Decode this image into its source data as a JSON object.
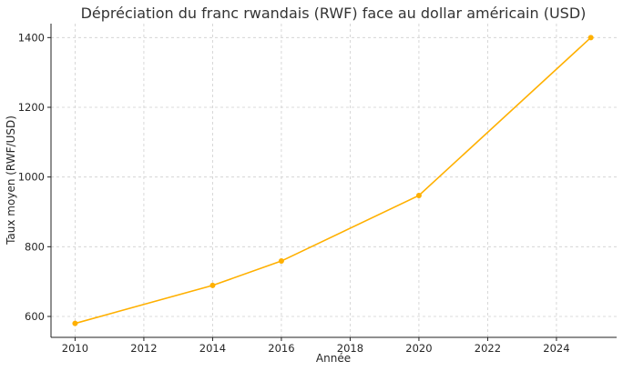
{
  "chart_data": {
    "type": "line",
    "title": "Dépréciation du franc rwandais (RWF) face au dollar américain (USD)",
    "xlabel": "Année",
    "ylabel": "Taux moyen (RWF/USD)",
    "xlim": [
      2009.3,
      2025.75
    ],
    "ylim": [
      540,
      1440
    ],
    "xticks": [
      2010,
      2012,
      2014,
      2016,
      2018,
      2020,
      2022,
      2024
    ],
    "yticks": [
      600,
      800,
      1000,
      1200,
      1400
    ],
    "grid": true,
    "series": [
      {
        "color": "#FFB000",
        "x": [
          2010,
          2014,
          2016,
          2020,
          2025
        ],
        "y": [
          580,
          689,
          759,
          947,
          1400
        ]
      }
    ]
  }
}
